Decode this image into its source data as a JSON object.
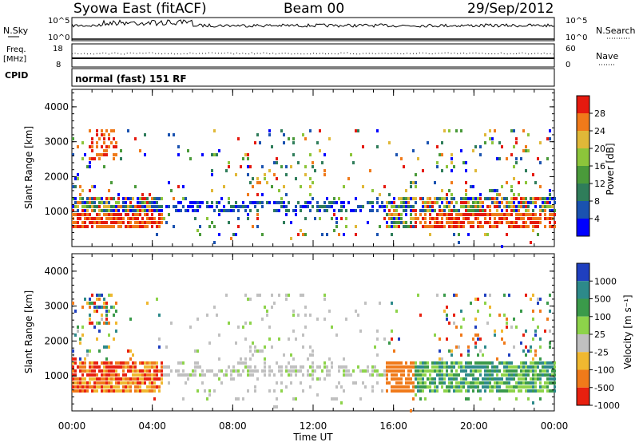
{
  "header": {
    "station": "Syowa East (fitACF)",
    "beam": "Beam 00",
    "date": "29/Sep/2012"
  },
  "params": {
    "nsky_label": "N.Sky",
    "nsearch_label": "N.Search",
    "freq_label_1": "Freq.",
    "freq_label_2": "[MHz]",
    "nave_label": "Nave",
    "cpid_label": "CPID",
    "cpid_value": "normal (fast) 151 RF",
    "nsky_ticks": [
      "10^5",
      "10^0"
    ],
    "freq_ticks": [
      "18",
      "8"
    ],
    "nave_ticks": [
      "60",
      "0"
    ]
  },
  "chart_data": [
    {
      "type": "heatmap",
      "id": "power",
      "ylabel": "Slant Range [km]",
      "xlabel": "",
      "ylim": [
        0,
        4500
      ],
      "yticks": [
        "1000",
        "2000",
        "3000",
        "4000"
      ],
      "colorbar_label": "Power [dB]",
      "colorbar_ticks": [
        "4",
        "8",
        "12",
        "16",
        "20",
        "24",
        "28"
      ],
      "colors": [
        "#0000ff",
        "#1a52b0",
        "#2f7d5a",
        "#4a9a3a",
        "#8cc53a",
        "#e0b838",
        "#f07a1a",
        "#e51a0f"
      ]
    },
    {
      "type": "heatmap",
      "id": "velocity",
      "ylabel": "Slant Range [km]",
      "xlabel": "Time UT",
      "ylim": [
        0,
        4500
      ],
      "yticks": [
        "1000",
        "2000",
        "3000",
        "4000"
      ],
      "xticks": [
        "00:00",
        "04:00",
        "08:00",
        "12:00",
        "16:00",
        "20:00",
        "00:00"
      ],
      "colorbar_label": "Velocity [m s⁻¹]",
      "colorbar_ticks": [
        "1000",
        "500",
        "100",
        "25",
        "-25",
        "-100",
        "-500",
        "-1000"
      ],
      "colors": [
        "#1f3fbf",
        "#2d8a8a",
        "#3a9a4a",
        "#8dd34a",
        "#c0c0c0",
        "#f0b830",
        "#f07a1a",
        "#e8200f"
      ]
    }
  ]
}
